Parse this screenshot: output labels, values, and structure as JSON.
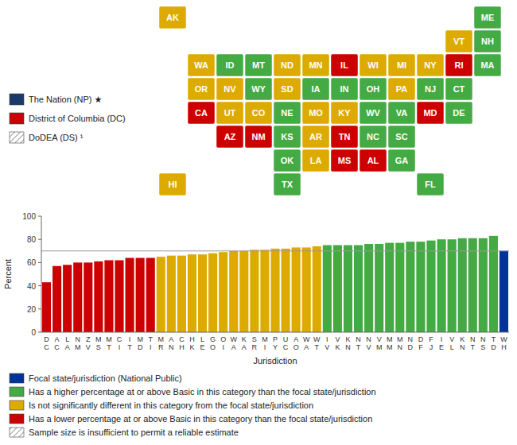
{
  "chart_data": [
    {
      "type": "map",
      "categories": [
        "WA",
        "OR",
        "CA",
        "NV",
        "ID",
        "MT",
        "WY",
        "UT",
        "CO",
        "AZ",
        "NM",
        "ND",
        "SD",
        "NE",
        "KS",
        "OK",
        "TX",
        "MN",
        "IA",
        "MO",
        "AR",
        "LA",
        "WI",
        "MI",
        "IL",
        "IN",
        "OH",
        "KY",
        "TN",
        "MS",
        "AL",
        "GA",
        "FL",
        "SC",
        "NC",
        "VA",
        "WV",
        "MD",
        "DE",
        "NJ",
        "PA",
        "NY",
        "CT",
        "RI",
        "MA",
        "VT",
        "NH",
        "ME",
        "HI",
        "AK"
      ],
      "colors": [
        "#ddaa00",
        "#ddaa00",
        "#cc0000",
        "#ddaa00",
        "#44aa44",
        "#44aa44",
        "#44aa44",
        "#ddaa00",
        "#ddaa00",
        "#cc0000",
        "#cc0000",
        "#ddaa00",
        "#ddaa00",
        "#44aa44",
        "#44aa44",
        "#44aa44",
        "#44aa44",
        "#ddaa00",
        "#44aa44",
        "#ddaa00",
        "#ddaa00",
        "#ddaa00",
        "#ddaa00",
        "#ddaa00",
        "#cc0000",
        "#44aa44",
        "#44aa44",
        "#ddaa00",
        "#cc0000",
        "#cc0000",
        "#cc0000",
        "#44aa44",
        "#44aa44",
        "#44aa44",
        "#44aa44",
        "#44aa44",
        "#44aa44",
        "#cc0000",
        "#44aa44",
        "#44aa44",
        "#ddaa00",
        "#ddaa00",
        "#44aa44",
        "#cc0000",
        "#44aa44",
        "#ddaa00",
        "#44aa44",
        "#44aa44",
        "#ddaa00",
        "#ddaa00"
      ],
      "legend_items": [
        {
          "color": "#1a3a6b",
          "label": "The Nation (NP) ★",
          "hatch": null
        },
        {
          "color": "#cc0000",
          "label": "District of Columbia (DC)",
          "hatch": null
        },
        {
          "color": "#ffffff",
          "label": "DoDEA (DS) ¹",
          "hatch": "///"
        }
      ]
    },
    {
      "type": "bar",
      "categories": [
        "D\nC",
        "A\nC",
        "L\nA",
        "N\nM",
        "Z\nV",
        "M\nS",
        "M\nT",
        "C\nI",
        "I\nT",
        "M\nD",
        "T\nI",
        "M\nR",
        "A\nN",
        "C\nH",
        "H\nK",
        "L\nE",
        "G\nO",
        "O\nI",
        "W\nA",
        "K\nA",
        "S\nR",
        "M\nI",
        "P\nY",
        "U\nC",
        "A\nO",
        "W\nA",
        "W\nT",
        "I\nV",
        "V\nK",
        "K\nN",
        "N\nT",
        "N\nV",
        "V\nM",
        "M\nM",
        "M\nN",
        "N\nD",
        "D\nF",
        "F\nJ",
        "I\nE",
        "V\nL",
        "K\nN",
        "N\nT",
        "N\nS",
        "T\nD",
        "W\nH"
      ],
      "values": [
        43,
        57,
        58,
        60,
        60,
        61,
        62,
        62,
        64,
        64,
        64,
        65,
        66,
        66,
        67,
        67,
        68,
        69,
        70,
        70,
        71,
        71,
        72,
        72,
        73,
        73,
        74,
        75,
        75,
        75,
        75,
        76,
        76,
        77,
        77,
        78,
        78,
        79,
        80,
        80,
        81,
        81,
        81,
        83,
        70
      ],
      "colors": [
        "#cc0000",
        "#cc0000",
        "#cc0000",
        "#cc0000",
        "#cc0000",
        "#cc0000",
        "#cc0000",
        "#cc0000",
        "#cc0000",
        "#cc0000",
        "#cc0000",
        "#ddaa00",
        "#ddaa00",
        "#ddaa00",
        "#ddaa00",
        "#ddaa00",
        "#ddaa00",
        "#ddaa00",
        "#ddaa00",
        "#ddaa00",
        "#ddaa00",
        "#ddaa00",
        "#ddaa00",
        "#ddaa00",
        "#ddaa00",
        "#ddaa00",
        "#ddaa00",
        "#44aa44",
        "#44aa44",
        "#44aa44",
        "#44aa44",
        "#44aa44",
        "#44aa44",
        "#44aa44",
        "#44aa44",
        "#44aa44",
        "#44aa44",
        "#44aa44",
        "#44aa44",
        "#44aa44",
        "#44aa44",
        "#44aa44",
        "#44aa44",
        "#44aa44",
        "#003399"
      ],
      "reference_line": 70,
      "xlabel": "Jurisdiction",
      "ylabel": "Percent",
      "ylim": [
        0,
        100
      ],
      "yticks": [
        0,
        20,
        40,
        60,
        80,
        100
      ],
      "grid": false,
      "legend_items": [
        {
          "color": "#003399",
          "label": "Focal state/jurisdiction (National Public)",
          "hatch": null
        },
        {
          "color": "#44aa44",
          "label": "Has a higher percentage at or above Basic in this category than the focal state/jurisdiction",
          "hatch": null
        },
        {
          "color": "#ddaa00",
          "label": "Is not significantly different in this category from the focal state/jurisdiction",
          "hatch": null
        },
        {
          "color": "#cc0000",
          "label": "Has a lower percentage at or above Basic in this category than the focal state/jurisdiction",
          "hatch": null
        },
        {
          "color": "#ffffff",
          "label": "Sample size is insufficient to permit a reliable estimate",
          "hatch": "///"
        }
      ]
    }
  ]
}
